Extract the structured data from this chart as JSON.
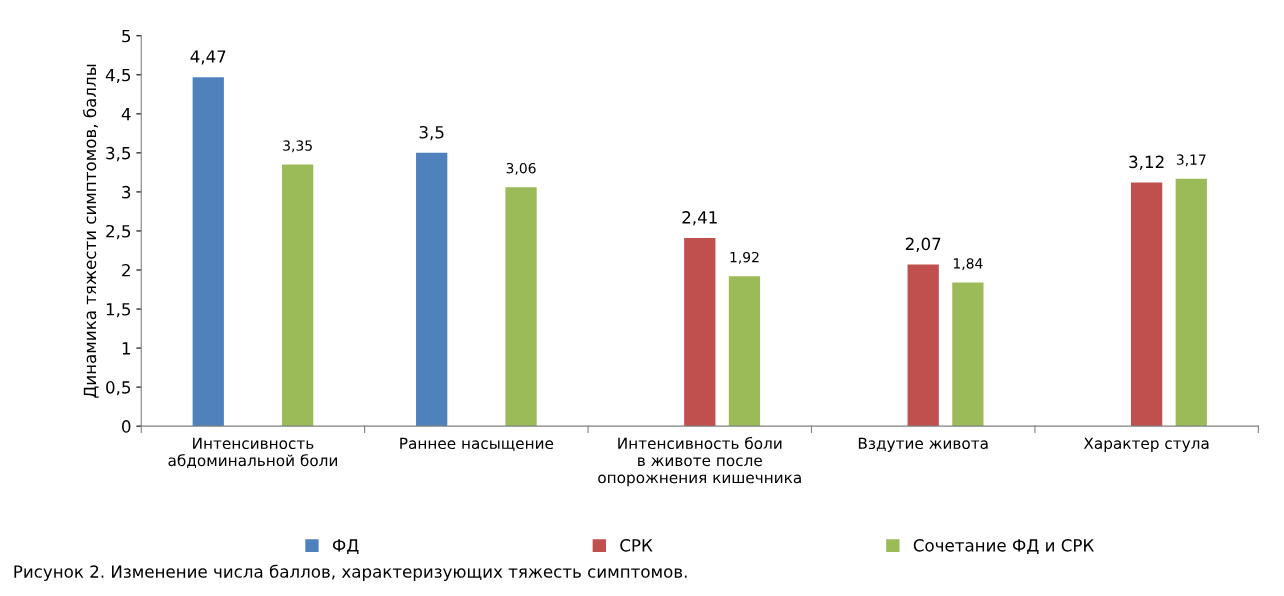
{
  "chart_data": {
    "type": "bar",
    "ylabel": "Динамика тяжести симптомов, баллы",
    "categories": [
      "Интенсивность\nабдоминальной боли",
      "Раннее насыщение",
      "Интенсивность боли\nв животе после\nопорожнения кишечника",
      "Вздутие живота",
      "Характер стула"
    ],
    "series": [
      {
        "name": "ФД",
        "color": "#4f81bd",
        "values": [
          4.47,
          3.5,
          null,
          null,
          null
        ],
        "value_labels": [
          "4,47",
          "3,5",
          null,
          null,
          null
        ]
      },
      {
        "name": "СРК",
        "color": "#c0504d",
        "values": [
          null,
          null,
          2.41,
          2.07,
          3.12
        ],
        "value_labels": [
          null,
          null,
          "2,41",
          "2,07",
          "3,12"
        ]
      },
      {
        "name": "Сочетание ФД и СРК",
        "color": "#9bbb59",
        "values": [
          3.35,
          3.06,
          1.92,
          1.84,
          3.17
        ],
        "value_labels": [
          "3,35",
          "3,06",
          "1,92",
          "1,84",
          "3,17"
        ]
      }
    ],
    "ylim": [
      0,
      5
    ],
    "yticks": [
      0,
      {
        "value": 0.5,
        "label": "0,5"
      },
      1,
      {
        "value": 1.5,
        "label": "1,5"
      },
      2,
      {
        "value": 2.5,
        "label": "2,5"
      },
      3,
      {
        "value": 3.5,
        "label": "3,5"
      },
      4,
      {
        "value": 4.5,
        "label": "4,5"
      },
      5
    ],
    "grid": false,
    "legend": "bottom",
    "annotations": [
      "Рисунок 2. Изменение числа баллов, характеризующих тяжесть симптомов."
    ]
  }
}
